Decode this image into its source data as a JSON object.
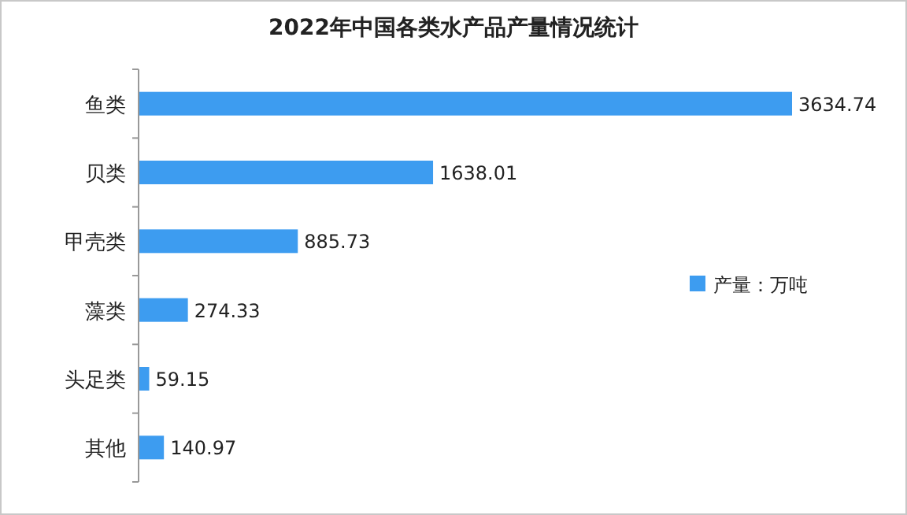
{
  "chart_data": {
    "type": "bar",
    "orientation": "horizontal",
    "title": "2022年中国各类水产品产量情况统计",
    "categories": [
      "鱼类",
      "贝类",
      "甲壳类",
      "藻类",
      "头足类",
      "其他"
    ],
    "series": [
      {
        "name": "产量：万吨",
        "color": "#3d9cf0",
        "values": [
          3634.74,
          1638.01,
          885.73,
          274.33,
          59.15,
          140.97
        ]
      }
    ],
    "data_labels": true,
    "legend": "right"
  }
}
